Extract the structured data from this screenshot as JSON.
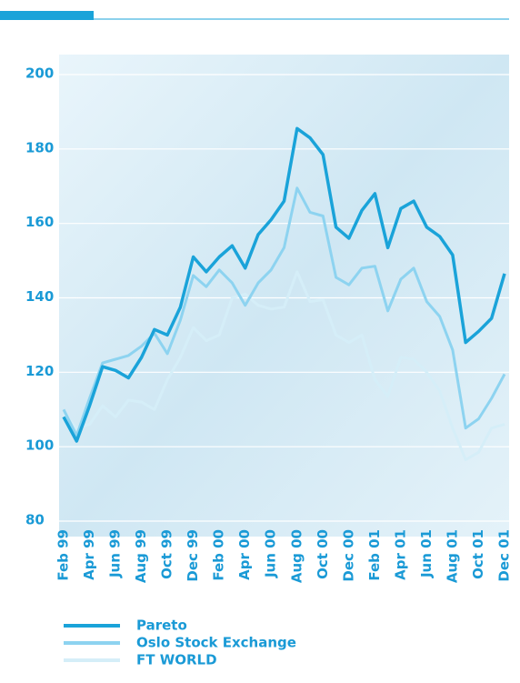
{
  "chart_data": {
    "type": "line",
    "categories": [
      "Feb 99",
      null,
      "Apr 99",
      null,
      "Jun 99",
      null,
      "Aug 99",
      null,
      "Oct 99",
      null,
      "Dec 99",
      null,
      "Feb 00",
      null,
      "Apr 00",
      null,
      "Jun 00",
      null,
      "Aug 00",
      null,
      "Oct 00",
      null,
      "Dec 00",
      null,
      "Feb 01",
      null,
      "Apr 01",
      null,
      "Jun 01",
      null,
      "Aug 01",
      null,
      "Oct 01",
      null,
      "Dec 01"
    ],
    "series": [
      {
        "name": "Pareto",
        "color": "#1aa3d9",
        "values": [
          108,
          101.5,
          111,
          121.5,
          120.5,
          118.5,
          124,
          131.5,
          130,
          137.5,
          151,
          147,
          151,
          154,
          148,
          157,
          161,
          166,
          185.5,
          183,
          178.5,
          159,
          156,
          163.5,
          168,
          153.5,
          164,
          166,
          159,
          156.5,
          151.5,
          128,
          131,
          134.5,
          146.5
        ]
      },
      {
        "name": "Oslo Stock Exchange",
        "color": "#8dd3f0",
        "values": [
          110,
          103,
          113,
          122.5,
          123.5,
          124.5,
          127,
          130.5,
          125,
          134,
          146,
          143,
          147.5,
          144,
          138,
          144,
          147.5,
          153.5,
          169.5,
          163,
          162,
          145.5,
          143.5,
          148,
          148.5,
          136.5,
          145,
          148,
          139,
          135,
          126,
          105,
          107.5,
          113,
          119.5
        ]
      },
      {
        "name": "FT  WORLD",
        "color": "#d5eef8",
        "values": [
          109,
          105,
          106,
          111,
          108,
          112.5,
          112,
          110,
          118,
          124,
          132,
          128.5,
          130,
          140,
          141,
          138,
          137,
          137.5,
          147,
          139,
          139.5,
          130,
          128,
          130,
          118,
          113.5,
          124,
          123.5,
          120,
          115,
          105,
          96.5,
          98.5,
          105,
          106
        ]
      }
    ],
    "ylim": [
      80,
      200
    ],
    "yticks": [
      80,
      100,
      120,
      140,
      160,
      180,
      200
    ],
    "grid": true
  }
}
